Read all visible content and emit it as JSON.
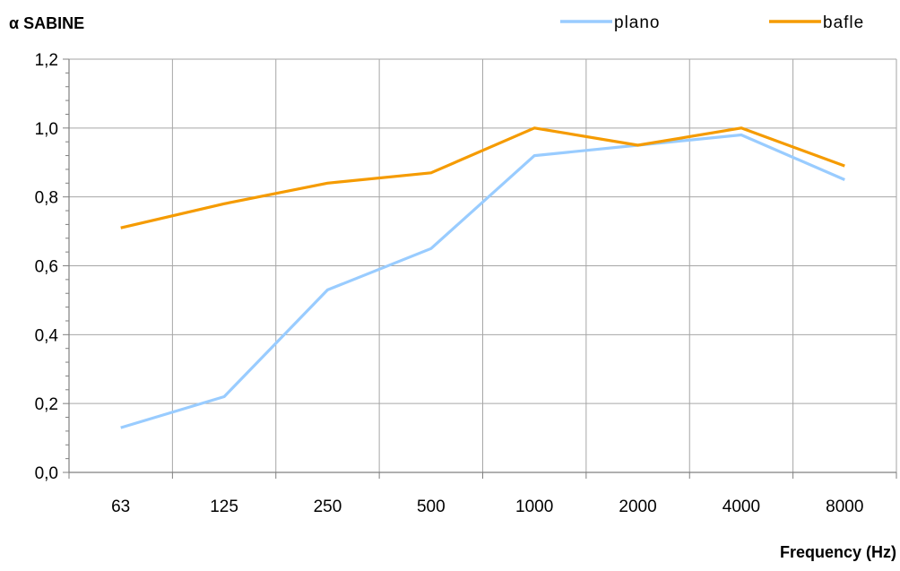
{
  "chart_data": {
    "type": "line",
    "title": "",
    "ylabel": "α SABINE",
    "xlabel": "Frequency (Hz)",
    "categories": [
      "63",
      "125",
      "250",
      "500",
      "1000",
      "2000",
      "4000",
      "8000"
    ],
    "yticks": [
      "0,0",
      "0,2",
      "0,4",
      "0,6",
      "0,8",
      "1,0",
      "1,2"
    ],
    "ylim": [
      0,
      1.2
    ],
    "grid": true,
    "legend_position": "top-right",
    "series": [
      {
        "name": "plano",
        "color": "#99ccff",
        "values": [
          0.13,
          0.22,
          0.53,
          0.65,
          0.92,
          0.95,
          0.98,
          0.85
        ]
      },
      {
        "name": "bafle",
        "color": "#f59b00",
        "values": [
          0.71,
          0.78,
          0.84,
          0.87,
          1.0,
          0.95,
          1.0,
          0.89
        ]
      }
    ]
  }
}
